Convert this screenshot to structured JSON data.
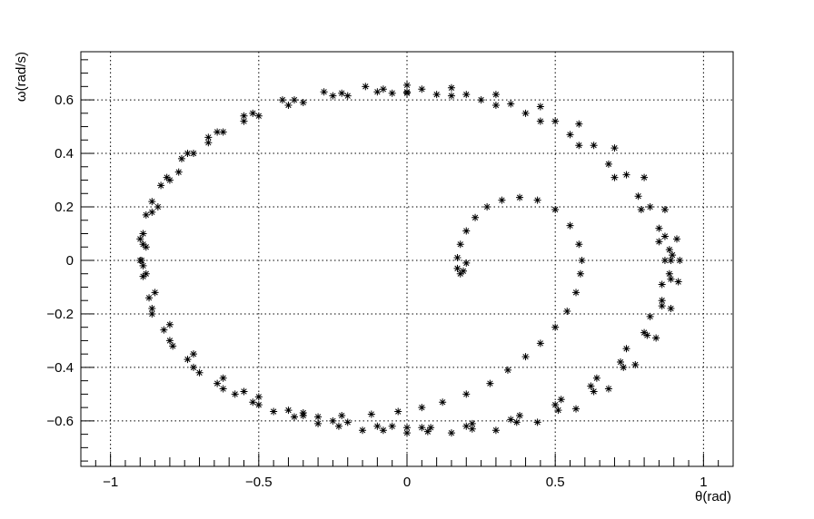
{
  "chart_data": {
    "type": "scatter",
    "marker": "asterisk",
    "marker_color": "#000000",
    "xlabel": "θ(rad)",
    "ylabel": "ω(rad/s)",
    "xlim": [
      -1.1,
      1.1
    ],
    "ylim": [
      -0.77,
      0.78
    ],
    "grid": true,
    "x_ticks": [
      -1,
      -0.5,
      0,
      0.5,
      1
    ],
    "x_tick_labels": [
      "−1",
      "−0.5",
      "0",
      "0.5",
      "1"
    ],
    "y_ticks": [
      -0.6,
      -0.4,
      -0.2,
      0,
      0.2,
      0.4,
      0.6
    ],
    "y_tick_labels": [
      "−0.6",
      "−0.4",
      "−0.2",
      "0",
      "0.2",
      "0.4",
      "0.6"
    ],
    "series": [
      {
        "points": [
          [
            0.2,
            -0.01
          ],
          [
            0.19,
            -0.04
          ],
          [
            0.18,
            -0.05
          ],
          [
            0.17,
            -0.03
          ],
          [
            0.17,
            0.01
          ],
          [
            0.18,
            0.06
          ],
          [
            0.2,
            0.11
          ],
          [
            0.23,
            0.16
          ],
          [
            0.27,
            0.2
          ],
          [
            0.32,
            0.225
          ],
          [
            0.38,
            0.235
          ],
          [
            0.44,
            0.225
          ],
          [
            0.5,
            0.19
          ],
          [
            0.55,
            0.13
          ],
          [
            0.58,
            0.06
          ],
          [
            0.59,
            0.0
          ],
          [
            0.585,
            -0.05
          ],
          [
            0.57,
            -0.12
          ],
          [
            0.54,
            -0.19
          ],
          [
            0.5,
            -0.25
          ],
          [
            0.45,
            -0.31
          ],
          [
            0.4,
            -0.36
          ],
          [
            0.34,
            -0.41
          ],
          [
            0.28,
            -0.46
          ],
          [
            0.2,
            -0.5
          ],
          [
            0.12,
            -0.53
          ],
          [
            0.05,
            -0.55
          ],
          [
            -0.03,
            -0.565
          ],
          [
            -0.12,
            -0.575
          ],
          [
            -0.22,
            -0.58
          ],
          [
            -0.3,
            -0.585
          ],
          [
            -0.35,
            -0.58
          ],
          [
            -0.5,
            -0.54
          ],
          [
            -0.62,
            -0.48
          ],
          [
            -0.72,
            -0.4
          ],
          [
            -0.8,
            -0.3
          ],
          [
            -0.86,
            -0.18
          ],
          [
            -0.89,
            -0.06
          ],
          [
            -0.895,
            0.0
          ],
          [
            -0.89,
            0.06
          ],
          [
            -0.86,
            0.18
          ],
          [
            -0.8,
            0.3
          ],
          [
            -0.72,
            0.4
          ],
          [
            -0.62,
            0.48
          ],
          [
            -0.5,
            0.54
          ],
          [
            -0.35,
            0.59
          ],
          [
            -0.2,
            0.615
          ],
          [
            -0.05,
            0.625
          ],
          [
            0.0,
            0.625
          ],
          [
            0.1,
            0.62
          ],
          [
            0.25,
            0.6
          ],
          [
            0.4,
            0.55
          ],
          [
            0.55,
            0.47
          ],
          [
            0.68,
            0.36
          ],
          [
            0.78,
            0.24
          ],
          [
            0.85,
            0.12
          ],
          [
            0.885,
            0.04
          ],
          [
            0.89,
            0.0
          ],
          [
            0.885,
            -0.05
          ],
          [
            0.86,
            -0.15
          ],
          [
            0.8,
            -0.27
          ],
          [
            0.72,
            -0.38
          ],
          [
            0.62,
            -0.47
          ],
          [
            0.5,
            -0.54
          ],
          [
            0.35,
            -0.595
          ],
          [
            0.2,
            -0.62
          ],
          [
            0.05,
            -0.625
          ],
          [
            0.0,
            -0.625
          ],
          [
            -0.1,
            -0.62
          ],
          [
            -0.25,
            -0.6
          ],
          [
            -0.4,
            -0.56
          ],
          [
            -0.55,
            -0.49
          ],
          [
            -0.88,
            -0.05
          ],
          [
            -0.88,
            0.05
          ],
          [
            -0.84,
            0.2
          ],
          [
            -0.77,
            0.33
          ],
          [
            -0.67,
            0.44
          ],
          [
            -0.55,
            0.52
          ],
          [
            -0.4,
            0.58
          ],
          [
            -0.25,
            0.615
          ],
          [
            -0.1,
            0.63
          ],
          [
            0.0,
            0.63
          ],
          [
            0.15,
            0.615
          ],
          [
            0.3,
            0.58
          ],
          [
            0.45,
            0.52
          ],
          [
            0.58,
            0.43
          ],
          [
            0.7,
            0.31
          ],
          [
            0.79,
            0.19
          ],
          [
            0.85,
            0.07
          ],
          [
            0.87,
            0.0
          ],
          [
            0.86,
            -0.09
          ],
          [
            0.82,
            -0.21
          ],
          [
            0.74,
            -0.33
          ],
          [
            0.64,
            -0.44
          ],
          [
            0.52,
            -0.52
          ],
          [
            0.38,
            -0.58
          ],
          [
            0.22,
            -0.61
          ],
          [
            0.08,
            -0.625
          ],
          [
            -0.05,
            -0.62
          ],
          [
            -0.2,
            -0.605
          ],
          [
            -0.35,
            -0.57
          ],
          [
            -0.5,
            -0.51
          ],
          [
            -0.62,
            -0.44
          ],
          [
            -0.72,
            -0.35
          ],
          [
            -0.8,
            -0.24
          ],
          [
            -0.85,
            -0.12
          ],
          [
            -0.89,
            -0.02
          ],
          [
            -0.89,
            0.1
          ],
          [
            -0.86,
            0.22
          ],
          [
            -0.81,
            0.31
          ],
          [
            -0.74,
            0.4
          ],
          [
            -0.64,
            0.48
          ],
          [
            -0.52,
            0.55
          ],
          [
            -0.38,
            0.6
          ],
          [
            -0.22,
            0.625
          ],
          [
            -0.08,
            0.64
          ],
          [
            0.05,
            0.64
          ],
          [
            0.2,
            0.62
          ],
          [
            0.35,
            0.585
          ],
          [
            0.5,
            0.52
          ],
          [
            0.63,
            0.43
          ],
          [
            0.74,
            0.32
          ],
          [
            0.82,
            0.2
          ],
          [
            0.87,
            0.09
          ],
          [
            0.895,
            0.02
          ],
          [
            0.89,
            -0.07
          ],
          [
            0.86,
            -0.17
          ],
          [
            0.81,
            -0.28
          ],
          [
            0.73,
            -0.4
          ],
          [
            0.63,
            -0.49
          ],
          [
            0.51,
            -0.56
          ],
          [
            0.37,
            -0.605
          ],
          [
            0.22,
            -0.63
          ],
          [
            0.07,
            -0.64
          ],
          [
            -0.08,
            -0.635
          ],
          [
            -0.23,
            -0.62
          ],
          [
            -0.38,
            -0.585
          ],
          [
            -0.52,
            -0.53
          ],
          [
            -0.64,
            -0.46
          ],
          [
            -0.74,
            -0.37
          ],
          [
            -0.82,
            -0.26
          ],
          [
            -0.87,
            -0.14
          ],
          [
            -0.9,
            0.0
          ],
          [
            -0.9,
            0.08
          ],
          [
            -0.88,
            0.17
          ],
          [
            -0.83,
            0.28
          ],
          [
            -0.76,
            0.38
          ],
          [
            -0.67,
            0.46
          ],
          [
            -0.55,
            0.54
          ],
          [
            -0.42,
            0.6
          ],
          [
            -0.28,
            0.63
          ],
          [
            -0.14,
            0.65
          ],
          [
            0.0,
            0.655
          ],
          [
            0.15,
            0.645
          ],
          [
            0.3,
            0.62
          ],
          [
            0.45,
            0.575
          ],
          [
            0.58,
            0.51
          ],
          [
            0.7,
            0.42
          ],
          [
            0.8,
            0.31
          ],
          [
            0.87,
            0.19
          ],
          [
            0.91,
            0.08
          ],
          [
            0.92,
            0.0
          ],
          [
            0.915,
            -0.08
          ],
          [
            0.89,
            -0.18
          ],
          [
            0.84,
            -0.29
          ],
          [
            0.77,
            -0.39
          ],
          [
            0.68,
            -0.48
          ],
          [
            0.57,
            -0.555
          ],
          [
            0.44,
            -0.605
          ],
          [
            0.3,
            -0.635
          ],
          [
            0.15,
            -0.645
          ],
          [
            0.0,
            -0.645
          ],
          [
            -0.15,
            -0.635
          ],
          [
            -0.3,
            -0.61
          ],
          [
            -0.45,
            -0.565
          ],
          [
            -0.58,
            -0.5
          ],
          [
            -0.7,
            -0.42
          ],
          [
            -0.79,
            -0.32
          ],
          [
            -0.86,
            -0.2
          ]
        ]
      }
    ]
  }
}
